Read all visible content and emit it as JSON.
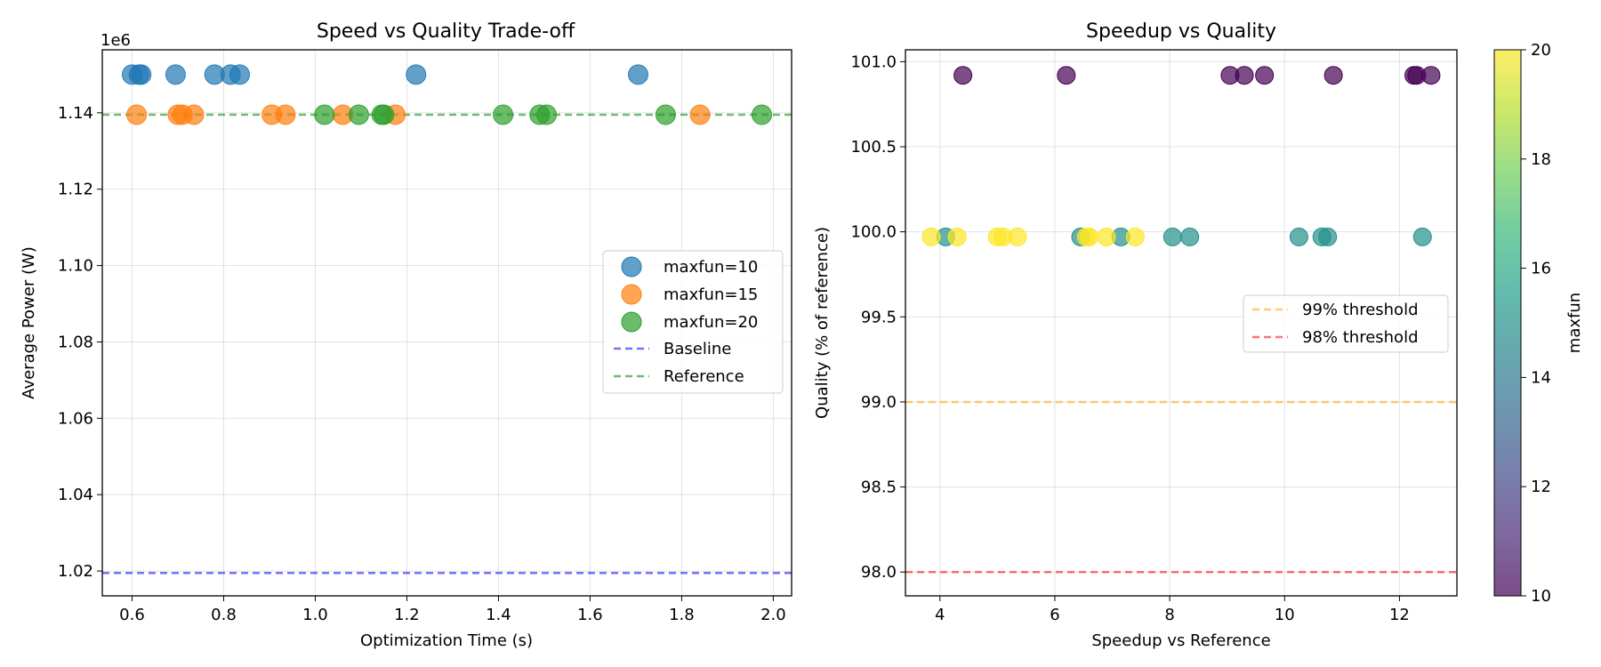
{
  "chart_data": [
    {
      "type": "scatter",
      "title": "Speed vs Quality Trade-off",
      "xlabel": "Optimization Time (s)",
      "ylabel": "Average Power (W)",
      "y_offset_label": "1e6",
      "xlim": [
        0.535,
        2.04
      ],
      "ylim": [
        1.0135,
        1.1565
      ],
      "xticks": [
        0.6,
        0.8,
        1.0,
        1.2,
        1.4,
        1.6,
        1.8,
        2.0
      ],
      "xtick_labels": [
        "0.6",
        "0.8",
        "1.0",
        "1.2",
        "1.4",
        "1.6",
        "1.8",
        "2.0"
      ],
      "yticks": [
        1.02,
        1.04,
        1.06,
        1.08,
        1.1,
        1.12,
        1.14
      ],
      "ytick_labels": [
        "1.02",
        "1.04",
        "1.06",
        "1.08",
        "1.10",
        "1.12",
        "1.14"
      ],
      "grid": true,
      "legend_position": "center-right",
      "series": [
        {
          "name": "maxfun=10",
          "color": "#1f77b4",
          "x": [
            0.6,
            0.615,
            0.62,
            0.695,
            0.78,
            0.815,
            0.835,
            1.22,
            1.705
          ],
          "y": [
            1.15,
            1.15,
            1.15,
            1.15,
            1.15,
            1.15,
            1.15,
            1.15,
            1.15
          ]
        },
        {
          "name": "maxfun=15",
          "color": "#ff7f0e",
          "x": [
            0.61,
            0.7,
            0.71,
            0.735,
            0.905,
            0.935,
            1.06,
            1.175,
            1.84
          ],
          "y": [
            1.1395,
            1.1395,
            1.1395,
            1.1395,
            1.1395,
            1.1395,
            1.1395,
            1.1395,
            1.1395
          ]
        },
        {
          "name": "maxfun=20",
          "color": "#2ca02c",
          "x": [
            1.02,
            1.095,
            1.145,
            1.15,
            1.41,
            1.49,
            1.505,
            1.765,
            1.975
          ],
          "y": [
            1.1395,
            1.1395,
            1.1395,
            1.1395,
            1.1395,
            1.1395,
            1.1395,
            1.1395,
            1.1395
          ]
        }
      ],
      "reference_lines": [
        {
          "name": "Baseline",
          "color": "#0000ff",
          "y": 1.0195
        },
        {
          "name": "Reference",
          "color": "#008000",
          "y": 1.1395
        }
      ]
    },
    {
      "type": "scatter",
      "title": "Speedup vs Quality",
      "xlabel": "Speedup vs Reference",
      "ylabel": "Quality (% of reference)",
      "xlim": [
        3.4,
        13.0
      ],
      "ylim": [
        97.86,
        101.07
      ],
      "xticks": [
        4,
        6,
        8,
        10,
        12
      ],
      "xtick_labels": [
        "4",
        "6",
        "8",
        "10",
        "12"
      ],
      "yticks": [
        98.0,
        98.5,
        99.0,
        99.5,
        100.0,
        100.5,
        101.0
      ],
      "ytick_labels": [
        "98.0",
        "98.5",
        "99.0",
        "99.5",
        "100.0",
        "100.5",
        "101.0"
      ],
      "grid": true,
      "legend_position": "center-right",
      "colorbar": {
        "label": "maxfun",
        "min": 10,
        "max": 20,
        "ticks": [
          10,
          12,
          14,
          16,
          18,
          20
        ],
        "tick_labels": [
          "10",
          "12",
          "14",
          "16",
          "18",
          "20"
        ]
      },
      "points": [
        {
          "x": 4.4,
          "y": 100.92,
          "c": 10
        },
        {
          "x": 6.2,
          "y": 100.92,
          "c": 10
        },
        {
          "x": 9.05,
          "y": 100.92,
          "c": 10
        },
        {
          "x": 9.3,
          "y": 100.92,
          "c": 10
        },
        {
          "x": 9.65,
          "y": 100.92,
          "c": 10
        },
        {
          "x": 10.85,
          "y": 100.92,
          "c": 10
        },
        {
          "x": 12.25,
          "y": 100.92,
          "c": 10
        },
        {
          "x": 12.3,
          "y": 100.92,
          "c": 10
        },
        {
          "x": 12.55,
          "y": 100.92,
          "c": 10
        },
        {
          "x": 4.1,
          "y": 99.97,
          "c": 15
        },
        {
          "x": 6.45,
          "y": 99.97,
          "c": 15
        },
        {
          "x": 7.15,
          "y": 99.97,
          "c": 15
        },
        {
          "x": 8.05,
          "y": 99.97,
          "c": 15
        },
        {
          "x": 8.35,
          "y": 99.97,
          "c": 15
        },
        {
          "x": 10.25,
          "y": 99.97,
          "c": 15
        },
        {
          "x": 10.65,
          "y": 99.97,
          "c": 15
        },
        {
          "x": 10.75,
          "y": 99.97,
          "c": 15
        },
        {
          "x": 12.4,
          "y": 99.97,
          "c": 15
        },
        {
          "x": 3.85,
          "y": 99.97,
          "c": 20
        },
        {
          "x": 4.3,
          "y": 99.97,
          "c": 20
        },
        {
          "x": 5.0,
          "y": 99.97,
          "c": 20
        },
        {
          "x": 5.1,
          "y": 99.97,
          "c": 20
        },
        {
          "x": 5.35,
          "y": 99.97,
          "c": 20
        },
        {
          "x": 6.55,
          "y": 99.97,
          "c": 20
        },
        {
          "x": 6.6,
          "y": 99.97,
          "c": 20
        },
        {
          "x": 6.9,
          "y": 99.97,
          "c": 20
        },
        {
          "x": 7.4,
          "y": 99.97,
          "c": 20
        }
      ],
      "reference_lines": [
        {
          "name": "99% threshold",
          "color": "#ffa500",
          "y": 99.0
        },
        {
          "name": "98% threshold",
          "color": "#ff0000",
          "y": 98.0
        }
      ]
    }
  ]
}
